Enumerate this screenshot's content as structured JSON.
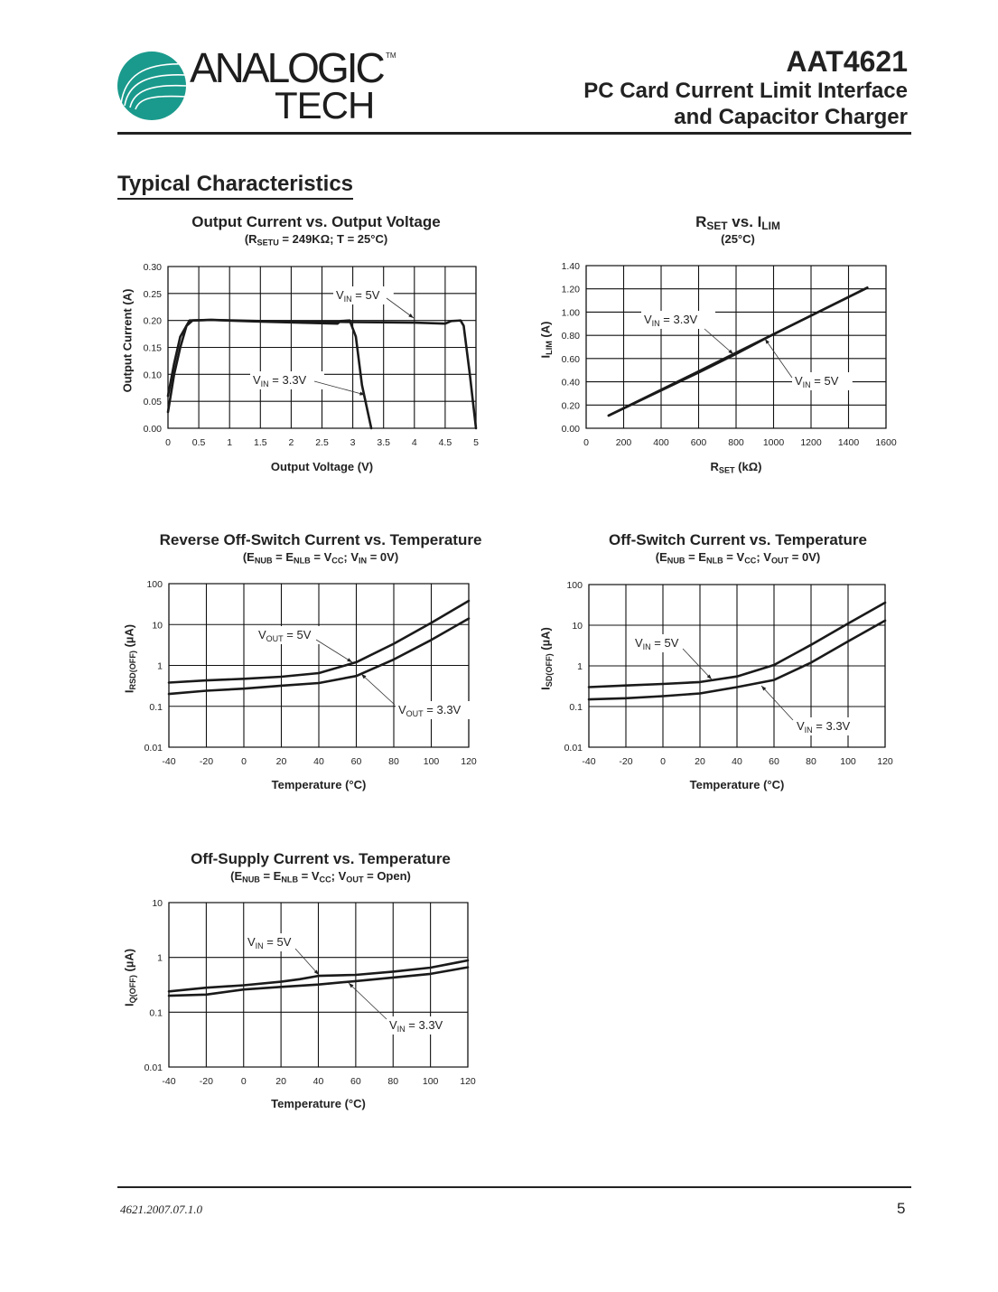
{
  "header": {
    "logo_text": "ANALOGIC",
    "logo_subtext": "TECH",
    "trademark": "TM",
    "part_number": "AAT4621",
    "title_line1": "PC Card Current Limit Interface",
    "title_line2": "and Capacitor Charger",
    "brand_color": "#1a9a8c"
  },
  "section_title": "Typical Characteristics",
  "chart_data": [
    {
      "type": "line",
      "title": [
        {
          "t": "Output Current vs. Output Voltage"
        }
      ],
      "subtitle": [
        {
          "t": "(R"
        },
        {
          "t": "SETU",
          "sub": true
        },
        {
          "t": " = 249KΩ; T =  25°C)"
        }
      ],
      "xlabel": [
        {
          "t": "Output Voltage (V)"
        }
      ],
      "ylabel": [
        {
          "t": "Output Current (A)"
        }
      ],
      "xscale": "linear",
      "yscale": "linear",
      "xlim": [
        0,
        5
      ],
      "ylim": [
        0,
        0.3
      ],
      "grid": true,
      "x_ticks": [
        "0",
        "0.5",
        "1",
        "1.5",
        "2",
        "2.5",
        "3",
        "3.5",
        "4",
        "4.5",
        "5"
      ],
      "y_ticks": [
        "0.00",
        "0.05",
        "0.10",
        "0.15",
        "0.20",
        "0.25",
        "0.30"
      ],
      "series": [
        {
          "label": [
            {
              "t": "V"
            },
            {
              "t": "IN",
              "sub": true
            },
            {
              "t": " = 5V"
            }
          ],
          "x": [
            0,
            0.1,
            0.2,
            0.3,
            0.4,
            0.7,
            1.5,
            2.5,
            3,
            4,
            4.5,
            4.6,
            4.75,
            4.8,
            4.9,
            5
          ],
          "y": [
            0.03,
            0.1,
            0.15,
            0.19,
            0.2,
            0.201,
            0.199,
            0.198,
            0.197,
            0.196,
            0.194,
            0.199,
            0.2,
            0.19,
            0.1,
            0
          ]
        },
        {
          "label": [
            {
              "t": "V"
            },
            {
              "t": "IN",
              "sub": true
            },
            {
              "t": " = 3.3V"
            }
          ],
          "x": [
            0,
            0.1,
            0.2,
            0.35,
            0.7,
            1.5,
            2.75,
            2.8,
            2.95,
            3.05,
            3.15,
            3.3
          ],
          "y": [
            0.06,
            0.12,
            0.17,
            0.2,
            0.201,
            0.198,
            0.194,
            0.199,
            0.2,
            0.17,
            0.08,
            0
          ]
        }
      ]
    },
    {
      "type": "line",
      "title": [
        {
          "t": "R"
        },
        {
          "t": "SET",
          "sub": true
        },
        {
          "t": " vs. I"
        },
        {
          "t": "LIM",
          "sub": true
        }
      ],
      "subtitle": [
        {
          "t": "(25°C)"
        }
      ],
      "xlabel": [
        {
          "t": "R"
        },
        {
          "t": "SET",
          "sub": true
        },
        {
          "t": " (kΩ)"
        }
      ],
      "ylabel": [
        {
          "t": "I"
        },
        {
          "t": "LIM",
          "sub": true
        },
        {
          "t": " (A)"
        }
      ],
      "xscale": "linear",
      "yscale": "linear",
      "xlim": [
        0,
        1600
      ],
      "ylim": [
        0,
        1.4
      ],
      "grid": true,
      "x_ticks": [
        "0",
        "200",
        "400",
        "600",
        "800",
        "1000",
        "1200",
        "1400",
        "1600"
      ],
      "y_ticks": [
        "0.00",
        "0.20",
        "0.40",
        "0.60",
        "0.80",
        "1.00",
        "1.20",
        "1.40"
      ],
      "series": [
        {
          "label": [
            {
              "t": "V"
            },
            {
              "t": "IN",
              "sub": true
            },
            {
              "t": " = 3.3V"
            }
          ],
          "x": [
            120,
            600,
            800,
            1000,
            1500
          ],
          "y": [
            0.11,
            0.49,
            0.65,
            0.81,
            1.21
          ]
        },
        {
          "label": [
            {
              "t": "V"
            },
            {
              "t": "IN",
              "sub": true
            },
            {
              "t": " = 5V"
            }
          ],
          "x": [
            120,
            600,
            800,
            1000,
            1500
          ],
          "y": [
            0.11,
            0.48,
            0.64,
            0.81,
            1.21
          ]
        }
      ]
    },
    {
      "type": "line",
      "title": [
        {
          "t": "Reverse Off-Switch Current vs. Temperature"
        }
      ],
      "subtitle": [
        {
          "t": "(E"
        },
        {
          "t": "NUB",
          "sub": true
        },
        {
          "t": " = E"
        },
        {
          "t": "NLB",
          "sub": true
        },
        {
          "t": " = V"
        },
        {
          "t": "CC",
          "sub": true
        },
        {
          "t": "; V"
        },
        {
          "t": "IN",
          "sub": true
        },
        {
          "t": " = 0V)"
        }
      ],
      "xlabel": [
        {
          "t": "Temperature (°C)"
        }
      ],
      "ylabel": [
        {
          "t": "I"
        },
        {
          "t": "RSD(OFF)",
          "sub": true
        },
        {
          "t": " (µA)"
        }
      ],
      "xscale": "linear",
      "yscale": "log",
      "xlim": [
        -40,
        120
      ],
      "ylim": [
        0.01,
        100
      ],
      "grid": true,
      "x_ticks": [
        "-40",
        "-20",
        "0",
        "20",
        "40",
        "60",
        "80",
        "100",
        "120"
      ],
      "y_ticks": [
        "0.01",
        "0.1",
        "1",
        "10",
        "100"
      ],
      "series": [
        {
          "label": [
            {
              "t": "V"
            },
            {
              "t": "OUT",
              "sub": true
            },
            {
              "t": " = 5V"
            }
          ],
          "x": [
            -40,
            -20,
            0,
            20,
            40,
            60,
            80,
            100,
            120
          ],
          "y": [
            0.38,
            0.43,
            0.47,
            0.53,
            0.65,
            1.2,
            3.4,
            11,
            38
          ]
        },
        {
          "label": [
            {
              "t": "V"
            },
            {
              "t": "OUT",
              "sub": true
            },
            {
              "t": " = 3.3V"
            }
          ],
          "x": [
            -40,
            -20,
            0,
            20,
            40,
            60,
            80,
            100,
            120
          ],
          "y": [
            0.2,
            0.24,
            0.27,
            0.32,
            0.37,
            0.55,
            1.4,
            4.2,
            14
          ]
        }
      ]
    },
    {
      "type": "line",
      "title": [
        {
          "t": "Off-Switch Current vs. Temperature"
        }
      ],
      "subtitle": [
        {
          "t": "(E"
        },
        {
          "t": "NUB",
          "sub": true
        },
        {
          "t": " = E"
        },
        {
          "t": "NLB",
          "sub": true
        },
        {
          "t": " = V"
        },
        {
          "t": "CC",
          "sub": true
        },
        {
          "t": "; V"
        },
        {
          "t": "OUT",
          "sub": true
        },
        {
          "t": " = 0V)"
        }
      ],
      "xlabel": [
        {
          "t": "Temperature (°C)"
        }
      ],
      "ylabel": [
        {
          "t": "I"
        },
        {
          "t": "SD(OFF)",
          "sub": true
        },
        {
          "t": " (µA)"
        }
      ],
      "xscale": "linear",
      "yscale": "log",
      "xlim": [
        -40,
        120
      ],
      "ylim": [
        0.01,
        100
      ],
      "grid": true,
      "x_ticks": [
        "-40",
        "-20",
        "0",
        "20",
        "40",
        "60",
        "80",
        "100",
        "120"
      ],
      "y_ticks": [
        "0.01",
        "0.1",
        "1",
        "10",
        "100"
      ],
      "series": [
        {
          "label": [
            {
              "t": "V"
            },
            {
              "t": "IN",
              "sub": true
            },
            {
              "t": " = 5V"
            }
          ],
          "x": [
            -40,
            -20,
            0,
            20,
            40,
            60,
            80,
            100,
            120
          ],
          "y": [
            0.3,
            0.33,
            0.36,
            0.4,
            0.55,
            1.05,
            3.3,
            11,
            36
          ]
        },
        {
          "label": [
            {
              "t": "V"
            },
            {
              "t": "IN",
              "sub": true
            },
            {
              "t": " = 3.3V"
            }
          ],
          "x": [
            -40,
            -20,
            0,
            20,
            40,
            60,
            80,
            100,
            120
          ],
          "y": [
            0.15,
            0.16,
            0.18,
            0.21,
            0.3,
            0.45,
            1.2,
            4,
            13
          ]
        }
      ]
    },
    {
      "type": "line",
      "title": [
        {
          "t": "Off-Supply Current vs. Temperature"
        }
      ],
      "subtitle": [
        {
          "t": "(E"
        },
        {
          "t": "NUB",
          "sub": true
        },
        {
          "t": " = E"
        },
        {
          "t": "NLB",
          "sub": true
        },
        {
          "t": " = V"
        },
        {
          "t": "CC",
          "sub": true
        },
        {
          "t": "; V"
        },
        {
          "t": "OUT",
          "sub": true
        },
        {
          "t": " = Open)"
        }
      ],
      "xlabel": [
        {
          "t": "Temperature (°C)"
        }
      ],
      "ylabel": [
        {
          "t": "I"
        },
        {
          "t": "Q(OFF)",
          "sub": true
        },
        {
          "t": " (µA)"
        }
      ],
      "xscale": "linear",
      "yscale": "log",
      "xlim": [
        -40,
        120
      ],
      "ylim": [
        0.01,
        10
      ],
      "grid": true,
      "x_ticks": [
        "-40",
        "-20",
        "0",
        "20",
        "40",
        "60",
        "80",
        "100",
        "120"
      ],
      "y_ticks": [
        "0.01",
        "0.1",
        "1",
        "10"
      ],
      "series": [
        {
          "label": [
            {
              "t": "V"
            },
            {
              "t": "IN",
              "sub": true
            },
            {
              "t": " = 5V"
            }
          ],
          "x": [
            -40,
            -20,
            0,
            20,
            30,
            40,
            60,
            80,
            100,
            120
          ],
          "y": [
            0.24,
            0.28,
            0.31,
            0.36,
            0.4,
            0.46,
            0.48,
            0.55,
            0.65,
            0.88
          ]
        },
        {
          "label": [
            {
              "t": "V"
            },
            {
              "t": "IN",
              "sub": true
            },
            {
              "t": " = 3.3V"
            }
          ],
          "x": [
            -40,
            -20,
            0,
            20,
            40,
            60,
            80,
            100,
            120
          ],
          "y": [
            0.2,
            0.21,
            0.26,
            0.29,
            0.32,
            0.37,
            0.43,
            0.5,
            0.66
          ]
        }
      ]
    }
  ],
  "footer": {
    "doc_code": "4621.2007.07.1.0",
    "page_number": "5"
  }
}
